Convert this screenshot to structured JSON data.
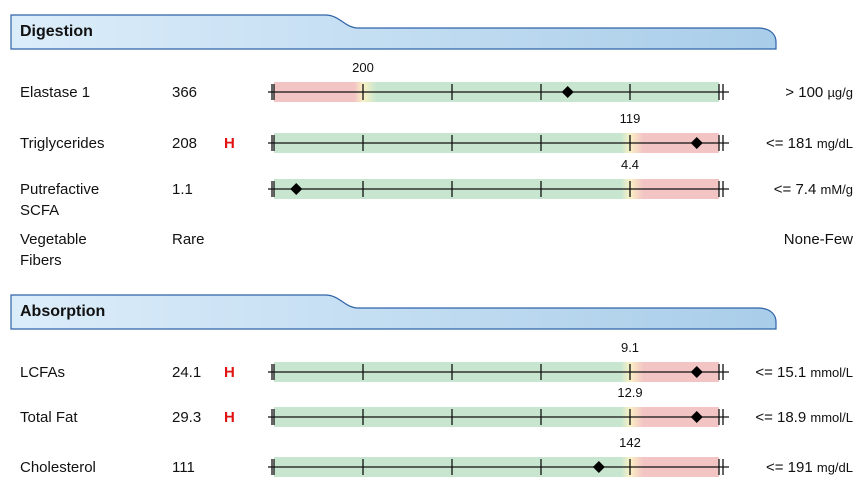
{
  "sections": [
    {
      "title": "Digestion",
      "rows": [
        {
          "name": "Elastase 1",
          "value": "366",
          "flag": "",
          "threshold_label": "200",
          "threshold": 0.2,
          "marker": 0.66,
          "range_text": "> 100",
          "unit": "µg/g",
          "zones": "red-green"
        },
        {
          "name": "Triglycerides",
          "value": "208",
          "flag": "H",
          "threshold_label": "119",
          "threshold": 0.8,
          "marker": 0.95,
          "range_text": "<= 181",
          "unit": "mg/dL",
          "zones": "green-red"
        },
        {
          "name": "Putrefactive SCFA",
          "value": "1.1",
          "flag": "",
          "threshold_label": "4.4",
          "threshold": 0.8,
          "marker": 0.05,
          "range_text": "<= 7.4",
          "unit": "mM/g",
          "zones": "green-red"
        },
        {
          "name": "Vegetable Fibers",
          "value": "Rare",
          "flag": "",
          "range_text": "None-Few",
          "unit": ""
        }
      ]
    },
    {
      "title": "Absorption",
      "rows": [
        {
          "name": "LCFAs",
          "value": "24.1",
          "flag": "H",
          "threshold_label": "9.1",
          "threshold": 0.8,
          "marker": 0.95,
          "range_text": "<= 15.1",
          "unit": "mmol/L",
          "zones": "green-red"
        },
        {
          "name": "Total Fat",
          "value": "29.3",
          "flag": "H",
          "threshold_label": "12.9",
          "threshold": 0.8,
          "marker": 0.95,
          "range_text": "<= 18.9",
          "unit": "mmol/L",
          "zones": "green-red"
        },
        {
          "name": "Cholesterol",
          "value": "111",
          "flag": "",
          "threshold_label": "142",
          "threshold": 0.8,
          "marker": 0.73,
          "range_text": "<= 191",
          "unit": "mg/dL",
          "zones": "green-red"
        }
      ]
    }
  ],
  "colors": {
    "green": "#c8e6cf",
    "red": "#f2c4c4",
    "yellow": "#fbf1c4",
    "header_gradient_start": "#c9e3f6",
    "header_gradient_end": "#a8cdea",
    "header_border": "#2f63a8",
    "flag": "#e01414"
  }
}
